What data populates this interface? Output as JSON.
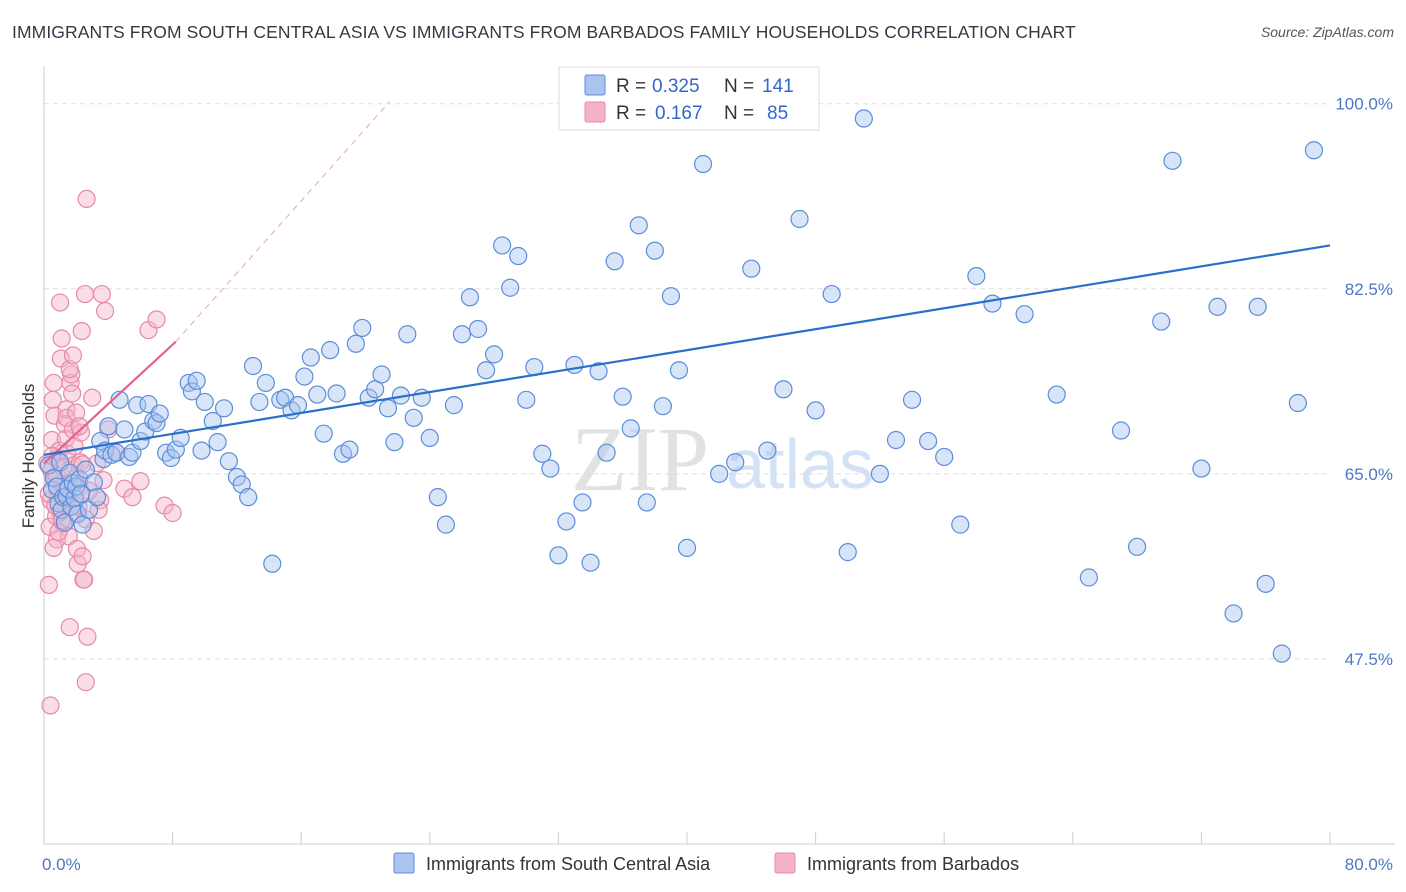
{
  "title": "IMMIGRANTS FROM SOUTH CENTRAL ASIA VS IMMIGRANTS FROM BARBADOS FAMILY HOUSEHOLDS CORRELATION CHART",
  "source": "Source: ZipAtlas.com",
  "watermark": {
    "zip": "ZIP",
    "atlas": "atlas"
  },
  "colors": {
    "blue_fill": "#a9c4ef",
    "blue_stroke": "#5b8ed8",
    "blue_line": "#2a6fc9",
    "pink_fill": "#f5b3c8",
    "pink_stroke": "#e58aa8",
    "pink_line": "#e4638e",
    "grid": "#dddddd",
    "tick_label": "#4a78c4"
  },
  "legend": {
    "items": [
      {
        "r_label": "R =",
        "r_value": "0.325",
        "n_label": "N =",
        "n_value": "141"
      },
      {
        "r_label": "R =",
        "r_value": "0.167",
        "n_label": "N =",
        "n_value": "85"
      }
    ]
  },
  "chart_data": {
    "type": "scatter",
    "title": "IMMIGRANTS FROM SOUTH CENTRAL ASIA VS IMMIGRANTS FROM BARBADOS FAMILY HOUSEHOLDS CORRELATION CHART",
    "xlabel": "",
    "ylabel": "Family Households",
    "xlim": [
      0,
      80
    ],
    "ylim": [
      30,
      103
    ],
    "x_tick_labels": [
      "0.0%",
      "80.0%"
    ],
    "y_ticks": [
      47.5,
      65.0,
      82.5,
      100.0
    ],
    "y_tick_labels": [
      "47.5%",
      "65.0%",
      "82.5%",
      "100.0%"
    ],
    "grid": true,
    "legend_placement": "top-center",
    "series": [
      {
        "name": "Immigrants from South Central Asia",
        "color": "#a9c4ef",
        "trend": {
          "x": [
            0,
            80
          ],
          "y": [
            66.8,
            86.6
          ]
        },
        "points": [
          [
            0.3,
            65.8
          ],
          [
            0.5,
            63.5
          ],
          [
            0.6,
            64.6
          ],
          [
            0.8,
            63.8
          ],
          [
            0.9,
            62.2
          ],
          [
            1.0,
            66.1
          ],
          [
            1.1,
            61.6
          ],
          [
            1.2,
            62.8
          ],
          [
            1.3,
            60.4
          ],
          [
            1.4,
            62.9
          ],
          [
            1.5,
            63.6
          ],
          [
            1.6,
            65.1
          ],
          [
            1.7,
            61.9
          ],
          [
            1.8,
            64.1
          ],
          [
            1.9,
            62.7
          ],
          [
            2.0,
            63.8
          ],
          [
            2.1,
            61.2
          ],
          [
            2.2,
            64.5
          ],
          [
            2.3,
            63.1
          ],
          [
            2.4,
            60.2
          ],
          [
            2.6,
            65.4
          ],
          [
            2.8,
            61.6
          ],
          [
            3.1,
            64.2
          ],
          [
            3.3,
            62.8
          ],
          [
            3.5,
            68.1
          ],
          [
            3.7,
            66.4
          ],
          [
            3.8,
            67.2
          ],
          [
            4.0,
            69.5
          ],
          [
            4.2,
            66.8
          ],
          [
            4.5,
            67.0
          ],
          [
            4.7,
            72.0
          ],
          [
            5.0,
            69.2
          ],
          [
            5.3,
            66.6
          ],
          [
            5.5,
            67.0
          ],
          [
            5.8,
            71.5
          ],
          [
            6.0,
            68.1
          ],
          [
            6.3,
            69.0
          ],
          [
            6.5,
            71.6
          ],
          [
            6.8,
            70.0
          ],
          [
            7.0,
            69.8
          ],
          [
            7.2,
            70.7
          ],
          [
            7.6,
            67.0
          ],
          [
            7.9,
            66.5
          ],
          [
            8.2,
            67.3
          ],
          [
            8.5,
            68.4
          ],
          [
            9.0,
            73.6
          ],
          [
            9.2,
            72.8
          ],
          [
            9.5,
            73.8
          ],
          [
            9.8,
            67.2
          ],
          [
            10.0,
            71.8
          ],
          [
            10.5,
            70.0
          ],
          [
            10.8,
            68.0
          ],
          [
            11.2,
            71.2
          ],
          [
            11.5,
            66.2
          ],
          [
            12.0,
            64.7
          ],
          [
            12.3,
            64.0
          ],
          [
            12.7,
            62.8
          ],
          [
            13.0,
            75.2
          ],
          [
            13.4,
            71.8
          ],
          [
            13.8,
            73.6
          ],
          [
            14.2,
            56.5
          ],
          [
            14.7,
            72.0
          ],
          [
            15.0,
            72.2
          ],
          [
            15.4,
            71.0
          ],
          [
            15.8,
            71.5
          ],
          [
            16.2,
            74.2
          ],
          [
            16.6,
            76.0
          ],
          [
            17.0,
            72.5
          ],
          [
            17.4,
            68.8
          ],
          [
            17.8,
            76.7
          ],
          [
            18.2,
            72.6
          ],
          [
            18.6,
            66.9
          ],
          [
            19.0,
            67.3
          ],
          [
            19.4,
            77.3
          ],
          [
            19.8,
            78.8
          ],
          [
            20.2,
            72.2
          ],
          [
            20.6,
            73.0
          ],
          [
            21.0,
            74.4
          ],
          [
            21.4,
            71.2
          ],
          [
            21.8,
            68.0
          ],
          [
            22.2,
            72.4
          ],
          [
            22.6,
            78.2
          ],
          [
            23.0,
            70.3
          ],
          [
            23.5,
            72.2
          ],
          [
            24.0,
            68.4
          ],
          [
            24.5,
            62.8
          ],
          [
            25.0,
            60.2
          ],
          [
            25.5,
            71.5
          ],
          [
            26.0,
            78.2
          ],
          [
            26.5,
            81.7
          ],
          [
            27.0,
            78.7
          ],
          [
            27.5,
            74.8
          ],
          [
            28.0,
            76.3
          ],
          [
            28.5,
            86.6
          ],
          [
            29.0,
            82.6
          ],
          [
            29.5,
            85.6
          ],
          [
            30.0,
            72.0
          ],
          [
            30.5,
            75.1
          ],
          [
            31.0,
            66.9
          ],
          [
            31.5,
            65.5
          ],
          [
            32.0,
            57.3
          ],
          [
            32.5,
            60.5
          ],
          [
            33.0,
            75.3
          ],
          [
            33.5,
            62.3
          ],
          [
            34.0,
            56.6
          ],
          [
            34.5,
            74.7
          ],
          [
            35.0,
            67.0
          ],
          [
            35.5,
            85.1
          ],
          [
            36.0,
            72.3
          ],
          [
            36.5,
            69.3
          ],
          [
            37.0,
            88.5
          ],
          [
            37.5,
            62.3
          ],
          [
            38.0,
            86.1
          ],
          [
            38.5,
            71.4
          ],
          [
            39.0,
            81.8
          ],
          [
            39.5,
            74.8
          ],
          [
            40.0,
            58.0
          ],
          [
            41.0,
            94.3
          ],
          [
            42.0,
            65.0
          ],
          [
            43.0,
            66.1
          ],
          [
            44.0,
            84.4
          ],
          [
            45.0,
            67.2
          ],
          [
            46.0,
            73.0
          ],
          [
            47.0,
            89.1
          ],
          [
            48.0,
            71.0
          ],
          [
            49.0,
            82.0
          ],
          [
            50.0,
            57.6
          ],
          [
            51.0,
            98.6
          ],
          [
            52.0,
            65.0
          ],
          [
            53.0,
            68.2
          ],
          [
            54.0,
            72.0
          ],
          [
            55.0,
            68.1
          ],
          [
            56.0,
            66.6
          ],
          [
            57.0,
            60.2
          ],
          [
            58.0,
            83.7
          ],
          [
            59.0,
            81.1
          ],
          [
            61.0,
            80.1
          ],
          [
            63.0,
            72.5
          ],
          [
            65.0,
            55.2
          ],
          [
            67.0,
            69.1
          ],
          [
            68.0,
            58.1
          ],
          [
            69.5,
            79.4
          ],
          [
            70.2,
            94.6
          ],
          [
            72.0,
            65.5
          ],
          [
            73.0,
            80.8
          ],
          [
            74.0,
            51.8
          ],
          [
            75.5,
            80.8
          ],
          [
            76.0,
            54.6
          ],
          [
            77.0,
            48.0
          ],
          [
            78.0,
            71.7
          ],
          [
            79.0,
            95.6
          ]
        ]
      },
      {
        "name": "Immigrants from Barbados",
        "color": "#f5b3c8",
        "trend": {
          "x": [
            0,
            8.2
          ],
          "y": [
            66.0,
            77.5
          ]
        },
        "trend_extension": {
          "x": [
            8.2,
            21.5
          ],
          "y": [
            77.5,
            100.2
          ]
        },
        "points": [
          [
            0.2,
            66.0
          ],
          [
            0.3,
            54.5
          ],
          [
            0.35,
            60.0
          ],
          [
            0.4,
            62.5
          ],
          [
            0.45,
            65.3
          ],
          [
            0.5,
            68.2
          ],
          [
            0.55,
            72.0
          ],
          [
            0.6,
            73.6
          ],
          [
            0.65,
            70.5
          ],
          [
            0.7,
            64.5
          ],
          [
            0.75,
            61.0
          ],
          [
            0.8,
            58.8
          ],
          [
            0.85,
            66.5
          ],
          [
            0.9,
            63.2
          ],
          [
            0.95,
            67.2
          ],
          [
            1.0,
            81.2
          ],
          [
            1.05,
            75.9
          ],
          [
            1.1,
            77.8
          ],
          [
            1.15,
            62.0
          ],
          [
            1.2,
            60.3
          ],
          [
            1.25,
            64.0
          ],
          [
            1.3,
            69.7
          ],
          [
            1.35,
            68.3
          ],
          [
            1.4,
            71.1
          ],
          [
            1.45,
            66.9
          ],
          [
            1.5,
            62.7
          ],
          [
            1.55,
            59.1
          ],
          [
            1.6,
            50.5
          ],
          [
            1.65,
            73.6
          ],
          [
            1.7,
            74.4
          ],
          [
            1.75,
            72.6
          ],
          [
            1.8,
            69.2
          ],
          [
            1.85,
            65.8
          ],
          [
            1.9,
            67.6
          ],
          [
            1.95,
            64.6
          ],
          [
            2.0,
            61.3
          ],
          [
            2.05,
            57.9
          ],
          [
            2.1,
            56.5
          ],
          [
            2.15,
            61.9
          ],
          [
            2.2,
            63.7
          ],
          [
            2.25,
            66.1
          ],
          [
            2.3,
            68.9
          ],
          [
            2.35,
            78.5
          ],
          [
            2.4,
            57.2
          ],
          [
            2.45,
            55.0
          ],
          [
            2.5,
            55.0
          ],
          [
            2.55,
            82.0
          ],
          [
            2.6,
            45.3
          ],
          [
            2.65,
            91.0
          ],
          [
            2.7,
            49.6
          ],
          [
            3.0,
            72.2
          ],
          [
            3.3,
            66.0
          ],
          [
            3.5,
            62.5
          ],
          [
            3.6,
            82.0
          ],
          [
            3.8,
            80.4
          ],
          [
            4.0,
            69.2
          ],
          [
            4.5,
            67.0
          ],
          [
            5.0,
            63.6
          ],
          [
            5.5,
            62.8
          ],
          [
            6.0,
            64.3
          ],
          [
            6.5,
            78.6
          ],
          [
            7.0,
            79.6
          ],
          [
            7.5,
            62.0
          ],
          [
            8.0,
            61.3
          ],
          [
            0.4,
            43.1
          ],
          [
            0.6,
            58.0
          ],
          [
            0.8,
            64.8
          ],
          [
            1.0,
            61.4
          ],
          [
            1.2,
            65.6
          ],
          [
            1.4,
            70.3
          ],
          [
            1.6,
            74.9
          ],
          [
            1.8,
            76.2
          ],
          [
            2.0,
            70.8
          ],
          [
            2.2,
            69.5
          ],
          [
            2.4,
            65.9
          ],
          [
            2.6,
            60.7
          ],
          [
            2.8,
            63.4
          ],
          [
            3.1,
            59.6
          ],
          [
            3.4,
            61.6
          ],
          [
            3.7,
            64.4
          ],
          [
            0.3,
            63.1
          ],
          [
            0.5,
            66.7
          ],
          [
            0.7,
            62.0
          ],
          [
            0.9,
            59.5
          ],
          [
            1.1,
            60.6
          ]
        ]
      }
    ]
  },
  "bottom_legend": {
    "items": [
      {
        "label": "Immigrants from South Central Asia"
      },
      {
        "label": "Immigrants from Barbados"
      }
    ]
  }
}
